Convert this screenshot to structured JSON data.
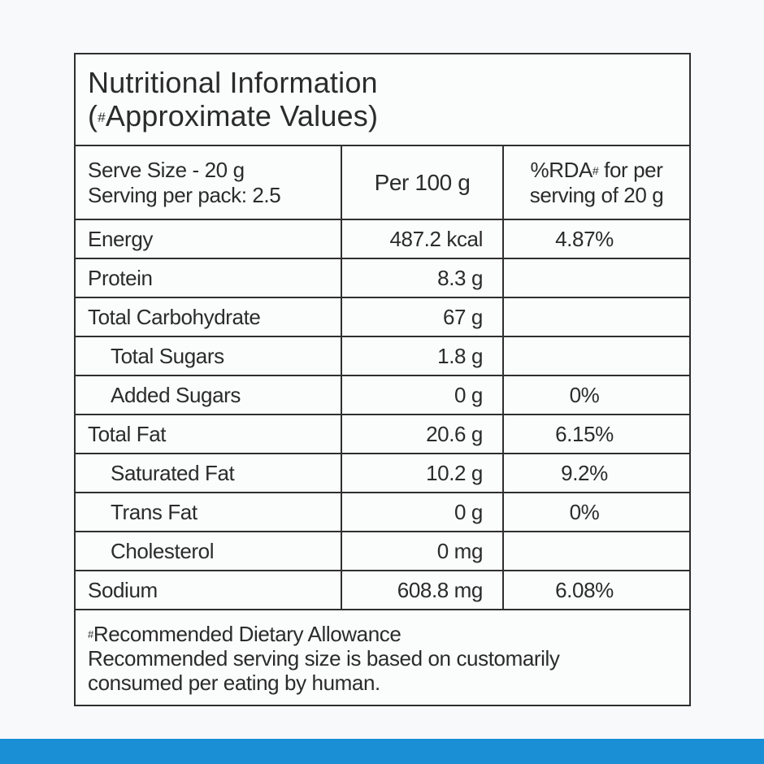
{
  "panel": {
    "title_line1": "Nutritional Information",
    "title_sup": "#",
    "title_line2": "Approximate Values)",
    "title_paren": "("
  },
  "header": {
    "serve_size": "Serve Size - 20 g",
    "serving_per_pack": "Serving per pack: 2.5",
    "per_100g": "Per 100 g",
    "rda_prefix": "%RDA",
    "rda_sup": "#",
    "rda_line1_rest": " for per",
    "rda_line2": "serving of 20 g"
  },
  "rows": [
    {
      "name": "Energy",
      "per100": "487.2 kcal",
      "rda": "4.87%"
    },
    {
      "name": "Protein",
      "per100": "8.3 g",
      "rda": ""
    },
    {
      "name": "Total Carbohydrate",
      "per100": "67 g",
      "rda": ""
    },
    {
      "name": "Total Sugars",
      "per100": "1.8 g",
      "rda": ""
    },
    {
      "name": "Added Sugars",
      "per100": "0 g",
      "rda": "0%"
    },
    {
      "name": "Total Fat",
      "per100": "20.6 g",
      "rda": "6.15%"
    },
    {
      "name": "Saturated Fat",
      "per100": "10.2 g",
      "rda": "9.2%"
    },
    {
      "name": "Trans Fat",
      "per100": "0 g",
      "rda": "0%"
    },
    {
      "name": "Cholesterol",
      "per100": "0 mg",
      "rda": ""
    },
    {
      "name": "Sodium",
      "per100": "608.8 mg",
      "rda": "6.08%"
    }
  ],
  "footnote": {
    "sup": "#",
    "line1": "Recommended Dietary Allowance",
    "line2": "Recommended serving size is based on customarily",
    "line3": "consumed per eating by human."
  },
  "colors": {
    "border": "#2f2f2f",
    "text": "#2b2b2b",
    "background": "#f7f9fa",
    "bottom_band": "#1a8fd6"
  }
}
